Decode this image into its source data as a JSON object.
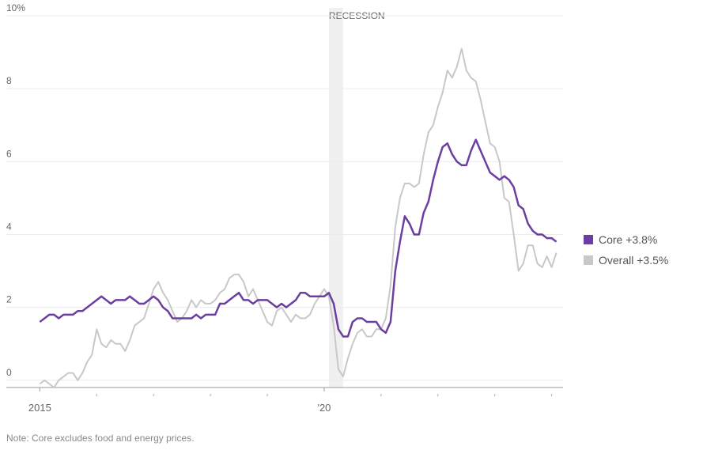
{
  "chart_data": {
    "type": "line",
    "note": "Note: Core excludes food and energy prices.",
    "recession": {
      "label": "RECESSION",
      "start": 2020.083,
      "end": 2020.333
    },
    "xlim": [
      2014.55,
      2024.2
    ],
    "ylim": [
      -0.2,
      10
    ],
    "yticks": [
      0,
      2,
      4,
      6,
      8,
      {
        "value": 10,
        "label": "10%"
      }
    ],
    "xticks": [
      2015,
      {
        "value": 2020,
        "label": "'20"
      }
    ],
    "minor_xticks": [
      2016,
      2017,
      2018,
      2019,
      2021,
      2022,
      2023,
      2024
    ],
    "grid": true,
    "legend": "right",
    "x": [
      2015,
      2015.083,
      2015.167,
      2015.25,
      2015.333,
      2015.417,
      2015.5,
      2015.583,
      2015.667,
      2015.75,
      2015.833,
      2015.917,
      2016,
      2016.083,
      2016.167,
      2016.25,
      2016.333,
      2016.417,
      2016.5,
      2016.583,
      2016.667,
      2016.75,
      2016.833,
      2016.917,
      2017,
      2017.083,
      2017.167,
      2017.25,
      2017.333,
      2017.417,
      2017.5,
      2017.583,
      2017.667,
      2017.75,
      2017.833,
      2017.917,
      2018,
      2018.083,
      2018.167,
      2018.25,
      2018.333,
      2018.417,
      2018.5,
      2018.583,
      2018.667,
      2018.75,
      2018.833,
      2018.917,
      2019,
      2019.083,
      2019.167,
      2019.25,
      2019.333,
      2019.417,
      2019.5,
      2019.583,
      2019.667,
      2019.75,
      2019.833,
      2019.917,
      2020,
      2020.083,
      2020.167,
      2020.25,
      2020.333,
      2020.417,
      2020.5,
      2020.583,
      2020.667,
      2020.75,
      2020.833,
      2020.917,
      2021,
      2021.083,
      2021.167,
      2021.25,
      2021.333,
      2021.417,
      2021.5,
      2021.583,
      2021.667,
      2021.75,
      2021.833,
      2021.917,
      2022,
      2022.083,
      2022.167,
      2022.25,
      2022.333,
      2022.417,
      2022.5,
      2022.583,
      2022.667,
      2022.75,
      2022.833,
      2022.917,
      2023,
      2023.083,
      2023.167,
      2023.25,
      2023.333,
      2023.417,
      2023.5,
      2023.583,
      2023.667,
      2023.75,
      2023.833,
      2023.917,
      2024,
      2024.083
    ],
    "series": [
      {
        "name": "Core +3.8%",
        "color": "#6b3fa0",
        "width": 2.5,
        "values": [
          1.6,
          1.7,
          1.8,
          1.8,
          1.7,
          1.8,
          1.8,
          1.8,
          1.9,
          1.9,
          2.0,
          2.1,
          2.2,
          2.3,
          2.2,
          2.1,
          2.2,
          2.2,
          2.2,
          2.3,
          2.2,
          2.1,
          2.1,
          2.2,
          2.3,
          2.2,
          2.0,
          1.9,
          1.7,
          1.7,
          1.7,
          1.7,
          1.7,
          1.8,
          1.7,
          1.8,
          1.8,
          1.8,
          2.1,
          2.1,
          2.2,
          2.3,
          2.4,
          2.2,
          2.2,
          2.1,
          2.2,
          2.2,
          2.2,
          2.1,
          2.0,
          2.1,
          2.0,
          2.1,
          2.2,
          2.4,
          2.4,
          2.3,
          2.3,
          2.3,
          2.3,
          2.4,
          2.1,
          1.4,
          1.2,
          1.2,
          1.6,
          1.7,
          1.7,
          1.6,
          1.6,
          1.6,
          1.4,
          1.3,
          1.6,
          3.0,
          3.8,
          4.5,
          4.3,
          4.0,
          4.0,
          4.6,
          4.9,
          5.5,
          6.0,
          6.4,
          6.5,
          6.2,
          6.0,
          5.9,
          5.9,
          6.3,
          6.6,
          6.3,
          6.0,
          5.7,
          5.6,
          5.5,
          5.6,
          5.5,
          5.3,
          4.8,
          4.7,
          4.3,
          4.1,
          4.0,
          4.0,
          3.9,
          3.9,
          3.8
        ]
      },
      {
        "name": "Overall +3.5%",
        "color": "#c8c8c8",
        "width": 2,
        "values": [
          -0.1,
          0.0,
          -0.1,
          -0.2,
          0.0,
          0.1,
          0.2,
          0.2,
          0.0,
          0.2,
          0.5,
          0.7,
          1.4,
          1.0,
          0.9,
          1.1,
          1.0,
          1.0,
          0.8,
          1.1,
          1.5,
          1.6,
          1.7,
          2.1,
          2.5,
          2.7,
          2.4,
          2.2,
          1.9,
          1.6,
          1.7,
          1.9,
          2.2,
          2.0,
          2.2,
          2.1,
          2.1,
          2.2,
          2.4,
          2.5,
          2.8,
          2.9,
          2.9,
          2.7,
          2.3,
          2.5,
          2.2,
          1.9,
          1.6,
          1.5,
          1.9,
          2.0,
          1.8,
          1.6,
          1.8,
          1.7,
          1.7,
          1.8,
          2.1,
          2.3,
          2.5,
          2.3,
          1.5,
          0.3,
          0.1,
          0.6,
          1.0,
          1.3,
          1.4,
          1.2,
          1.2,
          1.4,
          1.4,
          1.7,
          2.6,
          4.2,
          5.0,
          5.4,
          5.4,
          5.3,
          5.4,
          6.2,
          6.8,
          7.0,
          7.5,
          7.9,
          8.5,
          8.3,
          8.6,
          9.1,
          8.5,
          8.3,
          8.2,
          7.7,
          7.1,
          6.5,
          6.4,
          6.0,
          5.0,
          4.9,
          4.0,
          3.0,
          3.2,
          3.7,
          3.7,
          3.2,
          3.1,
          3.4,
          3.1,
          3.5
        ]
      }
    ]
  }
}
